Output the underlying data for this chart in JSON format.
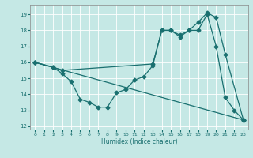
{
  "xlabel": "Humidex (Indice chaleur)",
  "bg_color": "#c5e8e5",
  "line_color": "#1a7070",
  "xlim": [
    -0.5,
    23.5
  ],
  "ylim": [
    11.8,
    19.6
  ],
  "yticks": [
    12,
    13,
    14,
    15,
    16,
    17,
    18,
    19
  ],
  "xticks": [
    0,
    1,
    2,
    3,
    4,
    5,
    6,
    7,
    8,
    9,
    10,
    11,
    12,
    13,
    14,
    15,
    16,
    17,
    18,
    19,
    20,
    21,
    22,
    23
  ],
  "line1_x": [
    0,
    23
  ],
  "line1_y": [
    16.0,
    12.4
  ],
  "line2_x": [
    0,
    2,
    3,
    4,
    5,
    6,
    7,
    8,
    9,
    10,
    11,
    12,
    13,
    14,
    15,
    16,
    17,
    18,
    19,
    20,
    21,
    22,
    23
  ],
  "line2_y": [
    16.0,
    15.7,
    15.3,
    14.8,
    13.7,
    13.5,
    13.2,
    13.2,
    14.1,
    14.3,
    14.9,
    15.1,
    15.8,
    18.0,
    18.0,
    17.6,
    18.0,
    18.0,
    19.0,
    17.0,
    13.8,
    13.0,
    12.4
  ],
  "line3_x": [
    0,
    2,
    3,
    13,
    14,
    15,
    16,
    17,
    18,
    19,
    20,
    21,
    23
  ],
  "line3_y": [
    16.0,
    15.7,
    15.5,
    15.9,
    18.0,
    18.0,
    17.7,
    18.0,
    18.5,
    19.1,
    18.8,
    16.5,
    12.4
  ]
}
